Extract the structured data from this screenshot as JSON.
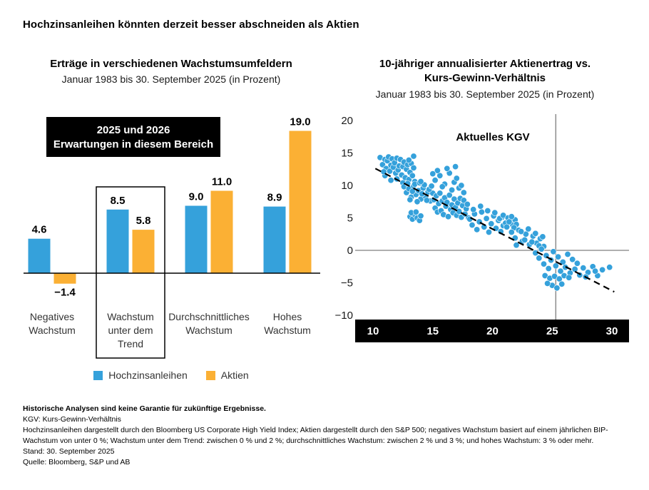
{
  "page": {
    "title": "Hochzinsanleihen könnten derzeit besser abschneiden als Aktien"
  },
  "colors": {
    "blue": "#35A1DB",
    "yellow": "#FBB034",
    "axis_black": "#000000",
    "gray_line": "#8C8C8C"
  },
  "chart_data": [
    {
      "type": "bar",
      "title": "Erträge in verschiedenen Wachstumsumfeldern",
      "subtitle": "Januar 1983 bis 30. September 2025 (in Prozent)",
      "unit": "percent",
      "annotation_lines": [
        "2025 und 2026",
        "Erwartungen in diesem Bereich"
      ],
      "categories": [
        [
          "Negatives",
          "Wachstum"
        ],
        [
          "Wachstum",
          "unter dem",
          "Trend"
        ],
        [
          "Durchschnittliches",
          "Wachstum"
        ],
        [
          "Hohes",
          "Wachstum"
        ]
      ],
      "series": [
        {
          "name": "Hochzinsanleihen",
          "color": "#35A1DB",
          "values": [
            4.6,
            8.5,
            9.0,
            8.9
          ]
        },
        {
          "name": "Aktien",
          "color": "#FBB034",
          "values": [
            -1.4,
            5.8,
            11.0,
            19.0
          ]
        }
      ],
      "highlight_category_index": 1
    },
    {
      "type": "scatter",
      "title_lines": [
        "10-jähriger annualisierter Aktienertrag vs.",
        "Kurs-Gewinn-Verhältnis"
      ],
      "subtitle": "Januar 1983 bis 30. September 2025 (in Prozent)",
      "xlim": [
        10,
        30
      ],
      "ylim": [
        -10,
        20
      ],
      "xticks": [
        10,
        15,
        20,
        25,
        30
      ],
      "yticks": [
        20,
        15,
        10,
        5,
        0,
        -5,
        -10
      ],
      "grid": false,
      "legend_position": "none",
      "annotation": "Aktuelles KGV",
      "current_pe_line_x": 25.3,
      "point_color": "#35A1DB",
      "trend_line": {
        "x1": 10.2,
        "y1": 12.6,
        "x2": 30.2,
        "y2": -6.4,
        "style": "dashed"
      },
      "points": [
        [
          10.6,
          14.3
        ],
        [
          10.8,
          13.2
        ],
        [
          11,
          14
        ],
        [
          11.1,
          12.6
        ],
        [
          11.2,
          13.8
        ],
        [
          11.3,
          14.4
        ],
        [
          11.4,
          12.2
        ],
        [
          11.5,
          13.1
        ],
        [
          11.6,
          14.1
        ],
        [
          11.7,
          12.8
        ],
        [
          11.8,
          13.5
        ],
        [
          11.9,
          11.9
        ],
        [
          12,
          14.2
        ],
        [
          12.1,
          12.4
        ],
        [
          12.2,
          13
        ],
        [
          12.3,
          14
        ],
        [
          12.4,
          11.6
        ],
        [
          12.5,
          12.9
        ],
        [
          12.6,
          13.6
        ],
        [
          12.7,
          11.2
        ],
        [
          12.8,
          12.5
        ],
        [
          12.9,
          13.2
        ],
        [
          13,
          10.9
        ],
        [
          13.1,
          12
        ],
        [
          13.2,
          13.4
        ],
        [
          13.3,
          11.5
        ],
        [
          13.4,
          12.7
        ],
        [
          13.5,
          10.6
        ],
        [
          11,
          11.5
        ],
        [
          11.5,
          10.8
        ],
        [
          12,
          11
        ],
        [
          12.5,
          10.4
        ],
        [
          13,
          13.9
        ],
        [
          13.4,
          14.5
        ],
        [
          10.9,
          12.1
        ],
        [
          12.6,
          9.8
        ],
        [
          12.8,
          8.9
        ],
        [
          13,
          9.5
        ],
        [
          13.2,
          8.2
        ],
        [
          13.4,
          9.9
        ],
        [
          13.6,
          8.6
        ],
        [
          13.8,
          9.2
        ],
        [
          14,
          7.9
        ],
        [
          14.2,
          9.6
        ],
        [
          14.4,
          8.3
        ],
        [
          14.6,
          9
        ],
        [
          14.8,
          7.6
        ],
        [
          15,
          8.8
        ],
        [
          13.1,
          7.8
        ],
        [
          13.5,
          10.2
        ],
        [
          13.9,
          10.4
        ],
        [
          14.3,
          10.1
        ],
        [
          14.7,
          9.4
        ],
        [
          12.9,
          10.3
        ],
        [
          14.1,
          8.7
        ],
        [
          14.5,
          7.7
        ],
        [
          14.9,
          9.9
        ],
        [
          13.3,
          9.1
        ],
        [
          13.7,
          7.5
        ],
        [
          14,
          10.6
        ],
        [
          13.1,
          5.2
        ],
        [
          13.3,
          4.8
        ],
        [
          13.5,
          5.5
        ],
        [
          13.7,
          5
        ],
        [
          13.9,
          4.6
        ],
        [
          13.2,
          5.8
        ],
        [
          13.6,
          5.9
        ],
        [
          14,
          5.3
        ],
        [
          15.1,
          7.8
        ],
        [
          15.2,
          6.5
        ],
        [
          15.3,
          8.4
        ],
        [
          15.4,
          5.9
        ],
        [
          15.5,
          7.2
        ],
        [
          15.6,
          8.8
        ],
        [
          15.7,
          6.1
        ],
        [
          15.8,
          7.6
        ],
        [
          15.9,
          5.5
        ],
        [
          16,
          8.1
        ],
        [
          16.1,
          6.8
        ],
        [
          16.2,
          7.4
        ],
        [
          16.3,
          5.2
        ],
        [
          16.4,
          8.5
        ],
        [
          16.5,
          6.3
        ],
        [
          16.6,
          7
        ],
        [
          16.7,
          5.8
        ],
        [
          16.8,
          7.9
        ],
        [
          16.9,
          6.6
        ],
        [
          17,
          5.4
        ],
        [
          17.1,
          7.3
        ],
        [
          17.2,
          6
        ],
        [
          17.3,
          8
        ],
        [
          17.4,
          5.1
        ],
        [
          17.5,
          6.9
        ],
        [
          17.6,
          7.7
        ],
        [
          17.7,
          5.6
        ],
        [
          17.8,
          6.4
        ],
        [
          17.9,
          7.1
        ],
        [
          18,
          5
        ],
        [
          15.2,
          10.8
        ],
        [
          15.6,
          11.5
        ],
        [
          16,
          10.2
        ],
        [
          16.4,
          11.9
        ],
        [
          16.8,
          10.5
        ],
        [
          17.2,
          9.6
        ],
        [
          15.4,
          12.3
        ],
        [
          15.8,
          9.8
        ],
        [
          16.2,
          12.6
        ],
        [
          16.6,
          9.3
        ],
        [
          17,
          11.1
        ],
        [
          17.4,
          10
        ],
        [
          15,
          11.8
        ],
        [
          16.9,
          12.9
        ],
        [
          17.6,
          8.9
        ],
        [
          18.1,
          4.8
        ],
        [
          18.3,
          3.9
        ],
        [
          18.5,
          5.6
        ],
        [
          18.7,
          3.2
        ],
        [
          18.9,
          4.4
        ],
        [
          19.1,
          5.9
        ],
        [
          19.3,
          3.6
        ],
        [
          19.5,
          4.9
        ],
        [
          19.7,
          2.8
        ],
        [
          19.9,
          4.1
        ],
        [
          20.1,
          5.3
        ],
        [
          20.3,
          3.4
        ],
        [
          20.5,
          4.6
        ],
        [
          20.7,
          2.9
        ],
        [
          20.9,
          3.8
        ],
        [
          18.4,
          6.3
        ],
        [
          19,
          6.8
        ],
        [
          19.6,
          6.1
        ],
        [
          20.2,
          5.8
        ],
        [
          20.8,
          5.1
        ],
        [
          20.6,
          4.9
        ],
        [
          20.9,
          5.4
        ],
        [
          21.1,
          4.2
        ],
        [
          21.3,
          5
        ],
        [
          21.5,
          4.5
        ],
        [
          21.7,
          3.9
        ],
        [
          21.9,
          4.7
        ],
        [
          21.2,
          3.6
        ],
        [
          21.6,
          5.2
        ],
        [
          22,
          4
        ],
        [
          21.4,
          4.4
        ],
        [
          21.8,
          3.5
        ],
        [
          21.6,
          2.8
        ],
        [
          21.9,
          1.9
        ],
        [
          22.2,
          3.1
        ],
        [
          22.5,
          1.4
        ],
        [
          22.8,
          2.5
        ],
        [
          23.1,
          0.9
        ],
        [
          23.4,
          2.2
        ],
        [
          23.7,
          1.1
        ],
        [
          24,
          1.8
        ],
        [
          24.3,
          0.6
        ],
        [
          22,
          0.8
        ],
        [
          22.4,
          2.9
        ],
        [
          22.7,
          1.6
        ],
        [
          23,
          3.3
        ],
        [
          23.3,
          1.3
        ],
        [
          23.6,
          2.6
        ],
        [
          23.9,
          0.7
        ],
        [
          24.2,
          2.1
        ],
        [
          23.6,
          -0.4
        ],
        [
          23.9,
          -1.2
        ],
        [
          24.1,
          0.2
        ],
        [
          24.3,
          -2.1
        ],
        [
          24.5,
          -0.8
        ],
        [
          24.7,
          -2.8
        ],
        [
          24.9,
          -1.5
        ],
        [
          25.1,
          -0.2
        ],
        [
          25.3,
          -2.4
        ],
        [
          25.5,
          -1
        ],
        [
          25.7,
          -3.2
        ],
        [
          25.9,
          -1.8
        ],
        [
          26.1,
          -2.6
        ],
        [
          26.3,
          -0.6
        ],
        [
          26.5,
          -3.5
        ],
        [
          26.7,
          -1.4
        ],
        [
          26.9,
          -2.9
        ],
        [
          27.1,
          -2
        ],
        [
          27.3,
          -3.8
        ],
        [
          24.4,
          -3.9
        ],
        [
          24.8,
          -4.3
        ],
        [
          25.2,
          -4
        ],
        [
          25.6,
          -4.4
        ],
        [
          26,
          -3.9
        ],
        [
          26.4,
          -4.2
        ],
        [
          25,
          -5.4
        ],
        [
          25.4,
          -5.8
        ],
        [
          25.8,
          -5.2
        ],
        [
          24.6,
          -5.1
        ],
        [
          27.6,
          -2.7
        ],
        [
          28,
          -3.4
        ],
        [
          28.4,
          -2.5
        ],
        [
          28.8,
          -3.9
        ],
        [
          29.2,
          -3
        ],
        [
          29.8,
          -2.6
        ],
        [
          27.8,
          -4.1
        ],
        [
          28.6,
          -3.2
        ]
      ]
    }
  ],
  "footnotes": {
    "bold_line": "Historische Analysen sind keine Garantie für zukünftige Ergebnisse.",
    "lines": [
      "KGV: Kurs-Gewinn-Verhältnis",
      "Hochzinsanleihen dargestellt durch den Bloomberg US Corporate High Yield Index; Aktien dargestellt durch den S&P 500; negatives Wachstum basiert auf einem jährlichen BIP-Wachstum von unter 0 %; Wachstum unter dem Trend: zwischen 0 % und 2 %; durchschnittliches Wachstum: zwischen 2 % und 3 %; und hohes Wachstum: 3 % oder mehr.",
      "Stand: 30. September 2025",
      "Quelle: Bloomberg, S&P und AB"
    ]
  }
}
